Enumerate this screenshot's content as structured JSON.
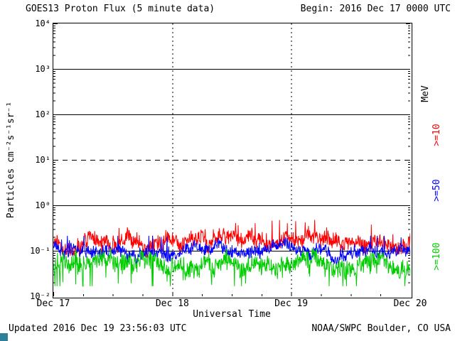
{
  "header": {
    "title": "GOES13 Proton Flux (5 minute data)",
    "begin": "Begin: 2016 Dec 17 0000 UTC"
  },
  "footer": {
    "updated": "Updated 2016 Dec 19 23:56:03 UTC",
    "source": "NOAA/SWPC Boulder, CO USA",
    "corner_artifact_color": "#2e7f99"
  },
  "chart_data": {
    "type": "line",
    "title": "GOES13 Proton Flux (5 minute data)",
    "xlabel": "Universal Time",
    "ylabel": "Particles cm⁻²s⁻¹sr⁻¹",
    "right_axis_label": "MeV",
    "x_ticks": [
      "Dec 17",
      "Dec 18",
      "Dec 19",
      "Dec 20"
    ],
    "y_ticks": [
      "10⁴",
      "10³",
      "10²",
      "10¹",
      "10⁰",
      "10⁻¹",
      "10⁻²"
    ],
    "ylim": [
      0.01,
      10000
    ],
    "y_log_range": [
      -2,
      4
    ],
    "x_start": "2016 Dec 17 0000 UTC",
    "x_end": "2016 Dec 20 0000 UTC",
    "x_range_days": 3,
    "cadence_minutes": 5,
    "points_per_series": 864,
    "grid": {
      "h_solid_decades": [
        3,
        2,
        0,
        -1
      ],
      "h_dashed_decades": [
        1
      ],
      "v_dashed_days": [
        1,
        2
      ]
    },
    "series": [
      {
        "name": ">=10",
        "unit": "MeV",
        "color": "#ff0000",
        "approx_mean_flux": 0.15,
        "approx_range": [
          0.08,
          0.45
        ],
        "log10_mean": -0.82,
        "log10_spread": 0.16,
        "spike_up": 0.25,
        "clamp_up": 0.5,
        "clamp_down": 0.33
      },
      {
        "name": ">=50",
        "unit": "MeV",
        "color": "#0000ff",
        "approx_mean_flux": 0.09,
        "approx_range": [
          0.05,
          0.2
        ],
        "log10_mean": -1.02,
        "log10_spread": 0.12,
        "spike_up": 0.2,
        "clamp_up": 0.35,
        "clamp_down": 0.3
      },
      {
        "name": ">=100",
        "unit": "MeV",
        "color": "#00cc00",
        "approx_mean_flux": 0.05,
        "approx_range": [
          0.018,
          0.1
        ],
        "log10_mean": -1.28,
        "log10_spread": 0.18,
        "spike_down": 0.35,
        "clamp_up": 0.33,
        "clamp_down": 0.5
      }
    ]
  }
}
